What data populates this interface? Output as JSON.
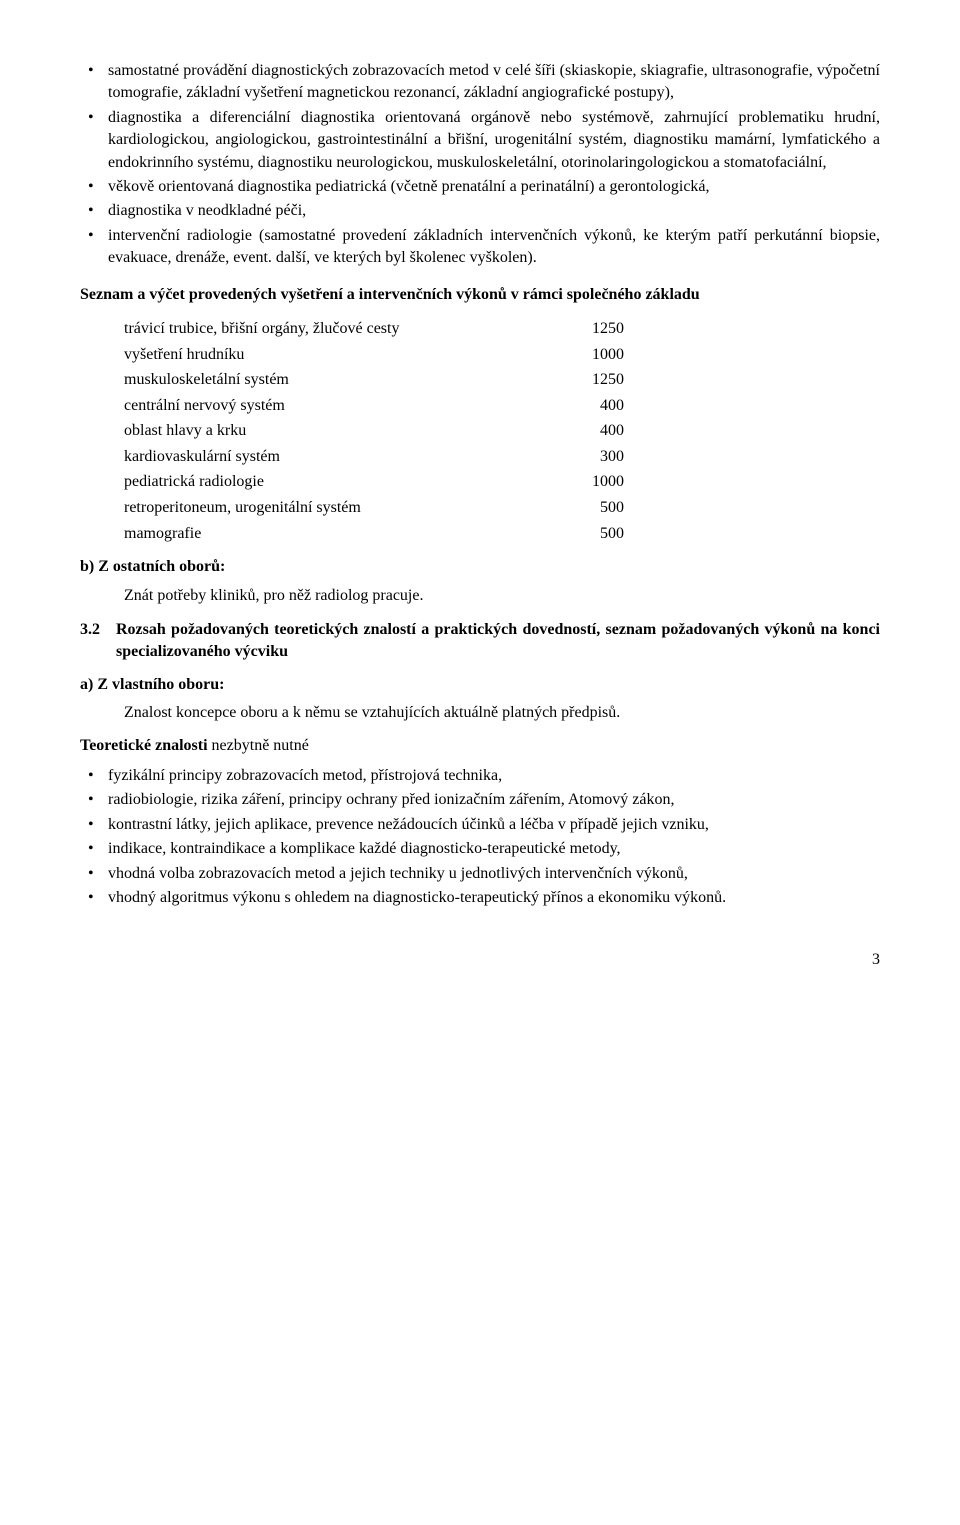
{
  "bullets1": [
    "samostatné provádění diagnostických zobrazovacích metod v celé šíři (skiaskopie, skiagrafie, ultrasonografie, výpočetní tomografie, základní vyšetření magnetickou rezonancí, základní angiografické postupy),",
    "diagnostika a diferenciální diagnostika orientovaná orgánově nebo systémově, zahrnující problematiku hrudní, kardiologickou, angiologickou, gastrointestinální a břišní, urogenitální systém, diagnostiku mamární, lymfatického a endokrinního systému, diagnostiku neurologickou, muskuloskeletální, otorinolaringologickou a stomatofaciální,",
    "věkově orientovaná diagnostika pediatrická (včetně prenatální a perinatální) a gerontologická,",
    "diagnostika v neodkladné péči,",
    "intervenční radiologie (samostatné provedení základních intervenčních výkonů, ke kterým patří perkutánní biopsie, evakuace, drenáže, event. další, ve kterých byl školenec vyškolen)."
  ],
  "heading1": "Seznam a výčet provedených vyšetření a intervenčních výkonů v rámci společného základu",
  "table1": {
    "rows": [
      {
        "label": "trávicí trubice, břišní orgány, žlučové cesty",
        "value": "1250"
      },
      {
        "label": "vyšetření hrudníku",
        "value": "1000"
      },
      {
        "label": "muskuloskeletální systém",
        "value": "1250"
      },
      {
        "label": "centrální nervový systém",
        "value": "400"
      },
      {
        "label": "oblast hlavy a krku",
        "value": "400"
      },
      {
        "label": "kardiovaskulární systém",
        "value": "300"
      },
      {
        "label": "pediatrická radiologie",
        "value": "1000"
      },
      {
        "label": "retroperitoneum, urogenitální systém",
        "value": "500"
      },
      {
        "label": "mamografie",
        "value": "500"
      }
    ]
  },
  "headingB": "b) Z ostatních oborů:",
  "paraB": "Znát potřeby kliniků, pro něž radiolog pracuje.",
  "heading32": {
    "num": "3.2",
    "text": "Rozsah požadovaných teoretických znalostí a praktických dovedností, seznam požadovaných výkonů na konci specializovaného výcviku"
  },
  "headingA": "a) Z vlastního oboru:",
  "paraA": "Znalost koncepce oboru a k němu se vztahujících aktuálně platných předpisů.",
  "heading2": "Teoretické znalosti",
  "heading2suffix": " nezbytně nutné",
  "bullets2": [
    "fyzikální principy zobrazovacích metod, přístrojová technika,",
    "radiobiologie, rizika záření, principy ochrany před ionizačním zářením, Atomový zákon,",
    "kontrastní látky, jejich aplikace, prevence nežádoucích účinků a léčba v případě jejich vzniku,",
    "indikace, kontraindikace a komplikace každé diagnosticko-terapeutické metody,",
    "vhodná volba zobrazovacích metod a jejich techniky u jednotlivých intervenčních výkonů,",
    "vhodný algoritmus výkonu s ohledem na diagnosticko-terapeutický přínos a ekonomiku výkonů."
  ],
  "pageNumber": "3"
}
